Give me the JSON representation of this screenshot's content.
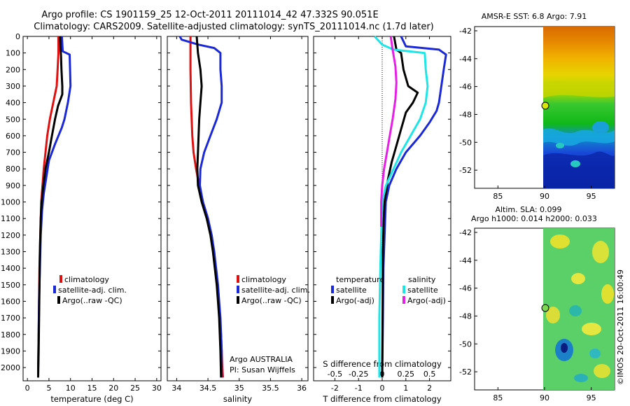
{
  "figure": {
    "title_line1": "Argo profile: CS 1901159_25 12-Oct-2011 20111014_42 47.332S 90.051E",
    "title_line2": "Climatology: CARS2009. Satellite-adjusted climatology: synTS_20111014.nc (1.7d later)",
    "credit": "©IMOS 20-Oct-2011 16:00:49",
    "colors": {
      "red": "#e01010",
      "blue": "#1a28d8",
      "black": "#000000",
      "cyan": "#1ee6e6",
      "magenta": "#e61ee6"
    }
  },
  "chart_data": [
    {
      "type": "line",
      "id": "temperature",
      "xlabel": "temperature (deg C)",
      "ylabel": "depth",
      "xlim": [
        -1,
        31
      ],
      "ylim": [
        2080,
        0
      ],
      "xticks": [
        0,
        5,
        10,
        15,
        20,
        25,
        30
      ],
      "yticks": [
        0,
        100,
        200,
        300,
        400,
        500,
        600,
        700,
        800,
        900,
        1000,
        1100,
        1200,
        1300,
        1400,
        1500,
        1600,
        1700,
        1800,
        1900,
        2000
      ],
      "legend": [
        "climatology",
        "satellite-adj. clim.",
        "Argo(..raw -QC)"
      ],
      "series": [
        {
          "name": "climatology",
          "color": "#e01010",
          "points": [
            [
              7.2,
              0
            ],
            [
              7.2,
              100
            ],
            [
              7.0,
              200
            ],
            [
              6.8,
              300
            ],
            [
              6.0,
              400
            ],
            [
              5.2,
              500
            ],
            [
              4.6,
              600
            ],
            [
              4.2,
              700
            ],
            [
              3.8,
              800
            ],
            [
              3.5,
              900
            ],
            [
              3.2,
              1000
            ],
            [
              3.0,
              1200
            ],
            [
              2.8,
              1400
            ],
            [
              2.7,
              1600
            ],
            [
              2.6,
              1800
            ],
            [
              2.5,
              2000
            ],
            [
              2.5,
              2060
            ]
          ]
        },
        {
          "name": "satellite-adj. clim.",
          "color": "#1a28d8",
          "points": [
            [
              8.0,
              0
            ],
            [
              8.2,
              90
            ],
            [
              9.8,
              110
            ],
            [
              9.9,
              200
            ],
            [
              10.0,
              300
            ],
            [
              9.4,
              400
            ],
            [
              8.6,
              500
            ],
            [
              8.0,
              550
            ],
            [
              6.4,
              650
            ],
            [
              5.0,
              750
            ],
            [
              4.4,
              850
            ],
            [
              3.8,
              950
            ],
            [
              3.4,
              1050
            ],
            [
              3.1,
              1200
            ],
            [
              2.9,
              1400
            ],
            [
              2.7,
              1600
            ],
            [
              2.6,
              1800
            ],
            [
              2.5,
              2000
            ],
            [
              2.5,
              2060
            ]
          ]
        },
        {
          "name": "Argo(..raw -QC)",
          "color": "#000000",
          "points": [
            [
              7.6,
              0
            ],
            [
              7.7,
              80
            ],
            [
              7.8,
              120
            ],
            [
              7.9,
              200
            ],
            [
              8.1,
              300
            ],
            [
              8.1,
              350
            ],
            [
              7.1,
              420
            ],
            [
              6.4,
              500
            ],
            [
              5.7,
              600
            ],
            [
              5.0,
              700
            ],
            [
              4.2,
              800
            ],
            [
              3.7,
              900
            ],
            [
              3.3,
              1000
            ],
            [
              3.1,
              1100
            ],
            [
              2.9,
              1300
            ],
            [
              2.8,
              1500
            ],
            [
              2.7,
              1700
            ],
            [
              2.6,
              1900
            ],
            [
              2.5,
              2060
            ]
          ]
        }
      ]
    },
    {
      "type": "line",
      "id": "salinity",
      "xlabel": "salinity",
      "ylabel": "depth",
      "xlim": [
        33.85,
        36.1
      ],
      "ylim": [
        2080,
        0
      ],
      "xticks": [
        34,
        34.5,
        35,
        35.5,
        36
      ],
      "legend": [
        "climatology",
        "satellite-adj. clim.",
        "Argo(..raw -QC)"
      ],
      "annotation_line1": "Argo AUSTRALIA",
      "annotation_line2": "PI: Susan Wijffels",
      "series": [
        {
          "name": "climatology",
          "color": "#e01010",
          "points": [
            [
              34.22,
              0
            ],
            [
              34.22,
              200
            ],
            [
              34.23,
              400
            ],
            [
              34.24,
              500
            ],
            [
              34.25,
              600
            ],
            [
              34.27,
              700
            ],
            [
              34.31,
              800
            ],
            [
              34.36,
              900
            ],
            [
              34.42,
              1000
            ],
            [
              34.5,
              1100
            ],
            [
              34.55,
              1200
            ],
            [
              34.6,
              1300
            ],
            [
              34.62,
              1400
            ],
            [
              34.65,
              1500
            ],
            [
              34.67,
              1600
            ],
            [
              34.69,
              1700
            ],
            [
              34.71,
              1800
            ],
            [
              34.72,
              1900
            ],
            [
              34.73,
              2000
            ],
            [
              34.74,
              2060
            ]
          ]
        },
        {
          "name": "satellite-adj. clim.",
          "color": "#1a28d8",
          "points": [
            [
              34.05,
              0
            ],
            [
              34.08,
              20
            ],
            [
              34.35,
              50
            ],
            [
              34.6,
              70
            ],
            [
              34.7,
              100
            ],
            [
              34.7,
              200
            ],
            [
              34.72,
              300
            ],
            [
              34.72,
              400
            ],
            [
              34.64,
              500
            ],
            [
              34.54,
              600
            ],
            [
              34.44,
              700
            ],
            [
              34.38,
              800
            ],
            [
              34.37,
              900
            ],
            [
              34.42,
              1000
            ],
            [
              34.5,
              1100
            ],
            [
              34.56,
              1200
            ],
            [
              34.6,
              1300
            ],
            [
              34.63,
              1400
            ],
            [
              34.66,
              1500
            ],
            [
              34.68,
              1600
            ],
            [
              34.7,
              1700
            ],
            [
              34.71,
              1800
            ],
            [
              34.72,
              1900
            ],
            [
              34.72,
              2000
            ],
            [
              34.72,
              2060
            ]
          ]
        },
        {
          "name": "Argo(..raw -QC)",
          "color": "#000000",
          "points": [
            [
              34.32,
              0
            ],
            [
              34.34,
              100
            ],
            [
              34.38,
              200
            ],
            [
              34.4,
              300
            ],
            [
              34.38,
              400
            ],
            [
              34.36,
              500
            ],
            [
              34.35,
              600
            ],
            [
              34.34,
              700
            ],
            [
              34.33,
              800
            ],
            [
              34.34,
              900
            ],
            [
              34.4,
              1000
            ],
            [
              34.48,
              1100
            ],
            [
              34.54,
              1200
            ],
            [
              34.58,
              1300
            ],
            [
              34.61,
              1400
            ],
            [
              34.64,
              1500
            ],
            [
              34.66,
              1600
            ],
            [
              34.68,
              1700
            ],
            [
              34.69,
              1800
            ],
            [
              34.7,
              1900
            ],
            [
              34.71,
              2060
            ]
          ]
        }
      ]
    },
    {
      "type": "line",
      "id": "difference",
      "xlabel": "T difference from climatology",
      "xlabel_top": "S difference from climatology",
      "xlim": [
        -2.9,
        2.9
      ],
      "ylim": [
        2080,
        0
      ],
      "xticks": [
        -2,
        -1,
        0,
        1,
        2
      ],
      "xticks_s": [
        -0.5,
        -0.25,
        0,
        0.25,
        0.5
      ],
      "xticks_s_labels": [
        "-0.5",
        "-0.25",
        "0",
        "0.25",
        "0.5"
      ],
      "legend_temperature_title": "temperature",
      "legend_salinity_title": "salinity",
      "legend": [
        "satellite",
        "Argo(-adj)",
        "satellite",
        "Argo(-adj)"
      ],
      "series": [
        {
          "name": "T satellite",
          "color": "#1a28d8",
          "points": [
            [
              0.8,
              0
            ],
            [
              1.0,
              60
            ],
            [
              2.4,
              80
            ],
            [
              2.7,
              110
            ],
            [
              2.6,
              200
            ],
            [
              2.5,
              300
            ],
            [
              2.4,
              400
            ],
            [
              2.3,
              450
            ],
            [
              2.0,
              520
            ],
            [
              1.6,
              600
            ],
            [
              1.0,
              700
            ],
            [
              0.6,
              800
            ],
            [
              0.3,
              900
            ],
            [
              0.15,
              1000
            ],
            [
              0.1,
              1200
            ],
            [
              0.05,
              1400
            ],
            [
              0.03,
              1700
            ],
            [
              0.0,
              2060
            ]
          ]
        },
        {
          "name": "T Argo(-adj)",
          "color": "#000000",
          "points": [
            [
              0.5,
              0
            ],
            [
              0.6,
              80
            ],
            [
              0.8,
              100
            ],
            [
              0.9,
              200
            ],
            [
              1.1,
              300
            ],
            [
              1.5,
              340
            ],
            [
              1.3,
              400
            ],
            [
              1.0,
              460
            ],
            [
              0.8,
              560
            ],
            [
              0.6,
              660
            ],
            [
              0.4,
              760
            ],
            [
              0.25,
              860
            ],
            [
              0.1,
              1000
            ],
            [
              0.06,
              1100
            ],
            [
              0.03,
              1300
            ],
            [
              0.02,
              1600
            ],
            [
              0.0,
              2060
            ]
          ]
        },
        {
          "name": "S satellite",
          "color": "#1ee6e6",
          "points": [
            [
              -0.08,
              0
            ],
            [
              0.0,
              50
            ],
            [
              0.12,
              80
            ],
            [
              0.45,
              100
            ],
            [
              0.46,
              200
            ],
            [
              0.48,
              300
            ],
            [
              0.46,
              400
            ],
            [
              0.4,
              500
            ],
            [
              0.3,
              600
            ],
            [
              0.2,
              700
            ],
            [
              0.12,
              800
            ],
            [
              0.04,
              900
            ],
            [
              0.0,
              1000
            ],
            [
              -0.01,
              1200
            ],
            [
              -0.02,
              1400
            ],
            [
              -0.03,
              1700
            ],
            [
              -0.03,
              2060
            ]
          ]
        },
        {
          "name": "S Argo(-adj)",
          "color": "#e61ee6",
          "points": [
            [
              0.09,
              0
            ],
            [
              0.11,
              80
            ],
            [
              0.14,
              180
            ],
            [
              0.15,
              280
            ],
            [
              0.14,
              380
            ],
            [
              0.11,
              500
            ],
            [
              0.08,
              600
            ],
            [
              0.05,
              700
            ],
            [
              0.02,
              800
            ],
            [
              0.0,
              900
            ],
            [
              -0.01,
              1000
            ],
            [
              -0.01,
              1150
            ]
          ]
        }
      ]
    },
    {
      "type": "heatmap",
      "id": "sst_map",
      "title": "AMSR-E SST: 6.8 Argo: 7.91",
      "xlim": [
        82.5,
        97.5
      ],
      "ylim": [
        -53.3,
        -41.7
      ],
      "xticks": [
        85,
        90,
        95
      ],
      "yticks": [
        -42,
        -44,
        -46,
        -48,
        -50,
        -52
      ],
      "data_lon_range": [
        90,
        97.5
      ],
      "argo_position": {
        "lon": 90.051,
        "lat": -47.332
      }
    },
    {
      "type": "heatmap",
      "id": "sla_map",
      "title_line1": "Altim. SLA: 0.099",
      "title_line2": "Argo h1000: 0.014 h2000: 0.033",
      "xlim": [
        82.5,
        97.5
      ],
      "ylim": [
        -53.3,
        -41.7
      ],
      "xticks": [
        85,
        90,
        95
      ],
      "yticks": [
        -42,
        -44,
        -46,
        -48,
        -50,
        -52
      ],
      "data_lon_range": [
        90,
        97.5
      ],
      "argo_position": {
        "lon": 90.051,
        "lat": -47.332
      }
    }
  ]
}
